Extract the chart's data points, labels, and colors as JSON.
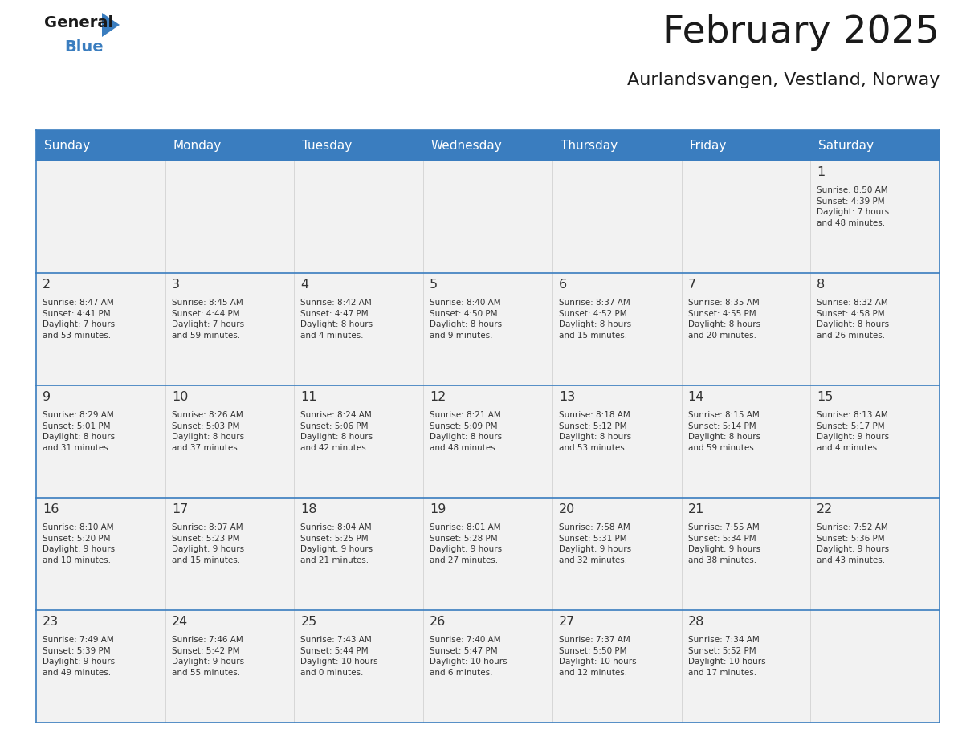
{
  "title": "February 2025",
  "subtitle": "Aurlandsvangen, Vestland, Norway",
  "header_color": "#3a7dbf",
  "header_text_color": "#ffffff",
  "cell_bg_color": "#f2f2f2",
  "border_color": "#3a7dbf",
  "text_color": "#333333",
  "days_of_week": [
    "Sunday",
    "Monday",
    "Tuesday",
    "Wednesday",
    "Thursday",
    "Friday",
    "Saturday"
  ],
  "weeks": [
    [
      {
        "day": "",
        "info": ""
      },
      {
        "day": "",
        "info": ""
      },
      {
        "day": "",
        "info": ""
      },
      {
        "day": "",
        "info": ""
      },
      {
        "day": "",
        "info": ""
      },
      {
        "day": "",
        "info": ""
      },
      {
        "day": "1",
        "info": "Sunrise: 8:50 AM\nSunset: 4:39 PM\nDaylight: 7 hours\nand 48 minutes."
      }
    ],
    [
      {
        "day": "2",
        "info": "Sunrise: 8:47 AM\nSunset: 4:41 PM\nDaylight: 7 hours\nand 53 minutes."
      },
      {
        "day": "3",
        "info": "Sunrise: 8:45 AM\nSunset: 4:44 PM\nDaylight: 7 hours\nand 59 minutes."
      },
      {
        "day": "4",
        "info": "Sunrise: 8:42 AM\nSunset: 4:47 PM\nDaylight: 8 hours\nand 4 minutes."
      },
      {
        "day": "5",
        "info": "Sunrise: 8:40 AM\nSunset: 4:50 PM\nDaylight: 8 hours\nand 9 minutes."
      },
      {
        "day": "6",
        "info": "Sunrise: 8:37 AM\nSunset: 4:52 PM\nDaylight: 8 hours\nand 15 minutes."
      },
      {
        "day": "7",
        "info": "Sunrise: 8:35 AM\nSunset: 4:55 PM\nDaylight: 8 hours\nand 20 minutes."
      },
      {
        "day": "8",
        "info": "Sunrise: 8:32 AM\nSunset: 4:58 PM\nDaylight: 8 hours\nand 26 minutes."
      }
    ],
    [
      {
        "day": "9",
        "info": "Sunrise: 8:29 AM\nSunset: 5:01 PM\nDaylight: 8 hours\nand 31 minutes."
      },
      {
        "day": "10",
        "info": "Sunrise: 8:26 AM\nSunset: 5:03 PM\nDaylight: 8 hours\nand 37 minutes."
      },
      {
        "day": "11",
        "info": "Sunrise: 8:24 AM\nSunset: 5:06 PM\nDaylight: 8 hours\nand 42 minutes."
      },
      {
        "day": "12",
        "info": "Sunrise: 8:21 AM\nSunset: 5:09 PM\nDaylight: 8 hours\nand 48 minutes."
      },
      {
        "day": "13",
        "info": "Sunrise: 8:18 AM\nSunset: 5:12 PM\nDaylight: 8 hours\nand 53 minutes."
      },
      {
        "day": "14",
        "info": "Sunrise: 8:15 AM\nSunset: 5:14 PM\nDaylight: 8 hours\nand 59 minutes."
      },
      {
        "day": "15",
        "info": "Sunrise: 8:13 AM\nSunset: 5:17 PM\nDaylight: 9 hours\nand 4 minutes."
      }
    ],
    [
      {
        "day": "16",
        "info": "Sunrise: 8:10 AM\nSunset: 5:20 PM\nDaylight: 9 hours\nand 10 minutes."
      },
      {
        "day": "17",
        "info": "Sunrise: 8:07 AM\nSunset: 5:23 PM\nDaylight: 9 hours\nand 15 minutes."
      },
      {
        "day": "18",
        "info": "Sunrise: 8:04 AM\nSunset: 5:25 PM\nDaylight: 9 hours\nand 21 minutes."
      },
      {
        "day": "19",
        "info": "Sunrise: 8:01 AM\nSunset: 5:28 PM\nDaylight: 9 hours\nand 27 minutes."
      },
      {
        "day": "20",
        "info": "Sunrise: 7:58 AM\nSunset: 5:31 PM\nDaylight: 9 hours\nand 32 minutes."
      },
      {
        "day": "21",
        "info": "Sunrise: 7:55 AM\nSunset: 5:34 PM\nDaylight: 9 hours\nand 38 minutes."
      },
      {
        "day": "22",
        "info": "Sunrise: 7:52 AM\nSunset: 5:36 PM\nDaylight: 9 hours\nand 43 minutes."
      }
    ],
    [
      {
        "day": "23",
        "info": "Sunrise: 7:49 AM\nSunset: 5:39 PM\nDaylight: 9 hours\nand 49 minutes."
      },
      {
        "day": "24",
        "info": "Sunrise: 7:46 AM\nSunset: 5:42 PM\nDaylight: 9 hours\nand 55 minutes."
      },
      {
        "day": "25",
        "info": "Sunrise: 7:43 AM\nSunset: 5:44 PM\nDaylight: 10 hours\nand 0 minutes."
      },
      {
        "day": "26",
        "info": "Sunrise: 7:40 AM\nSunset: 5:47 PM\nDaylight: 10 hours\nand 6 minutes."
      },
      {
        "day": "27",
        "info": "Sunrise: 7:37 AM\nSunset: 5:50 PM\nDaylight: 10 hours\nand 12 minutes."
      },
      {
        "day": "28",
        "info": "Sunrise: 7:34 AM\nSunset: 5:52 PM\nDaylight: 10 hours\nand 17 minutes."
      },
      {
        "day": "",
        "info": ""
      }
    ]
  ],
  "logo_color_general": "#1a1a1a",
  "logo_color_blue": "#3a7dbf",
  "logo_triangle_color": "#3a7dbf",
  "fig_width": 11.88,
  "fig_height": 9.18,
  "dpi": 100
}
